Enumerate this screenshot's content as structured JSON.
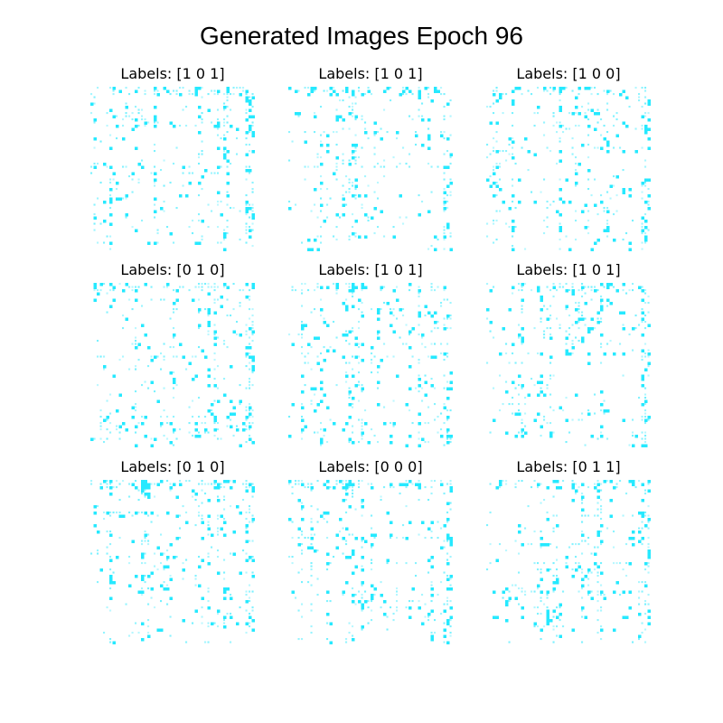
{
  "figure": {
    "title": "Generated Images Epoch 96",
    "pixel_color": "#00e5ff",
    "panels": [
      {
        "label": "Labels: [1 0 1]"
      },
      {
        "label": "Labels: [1 0 1]"
      },
      {
        "label": "Labels: [1 0 0]"
      },
      {
        "label": "Labels: [0 1 0]"
      },
      {
        "label": "Labels: [1 0 1]"
      },
      {
        "label": "Labels: [1 0 1]"
      },
      {
        "label": "Labels: [0 1 0]"
      },
      {
        "label": "Labels: [0 0 0]"
      },
      {
        "label": "Labels: [0 1 1]"
      }
    ]
  }
}
